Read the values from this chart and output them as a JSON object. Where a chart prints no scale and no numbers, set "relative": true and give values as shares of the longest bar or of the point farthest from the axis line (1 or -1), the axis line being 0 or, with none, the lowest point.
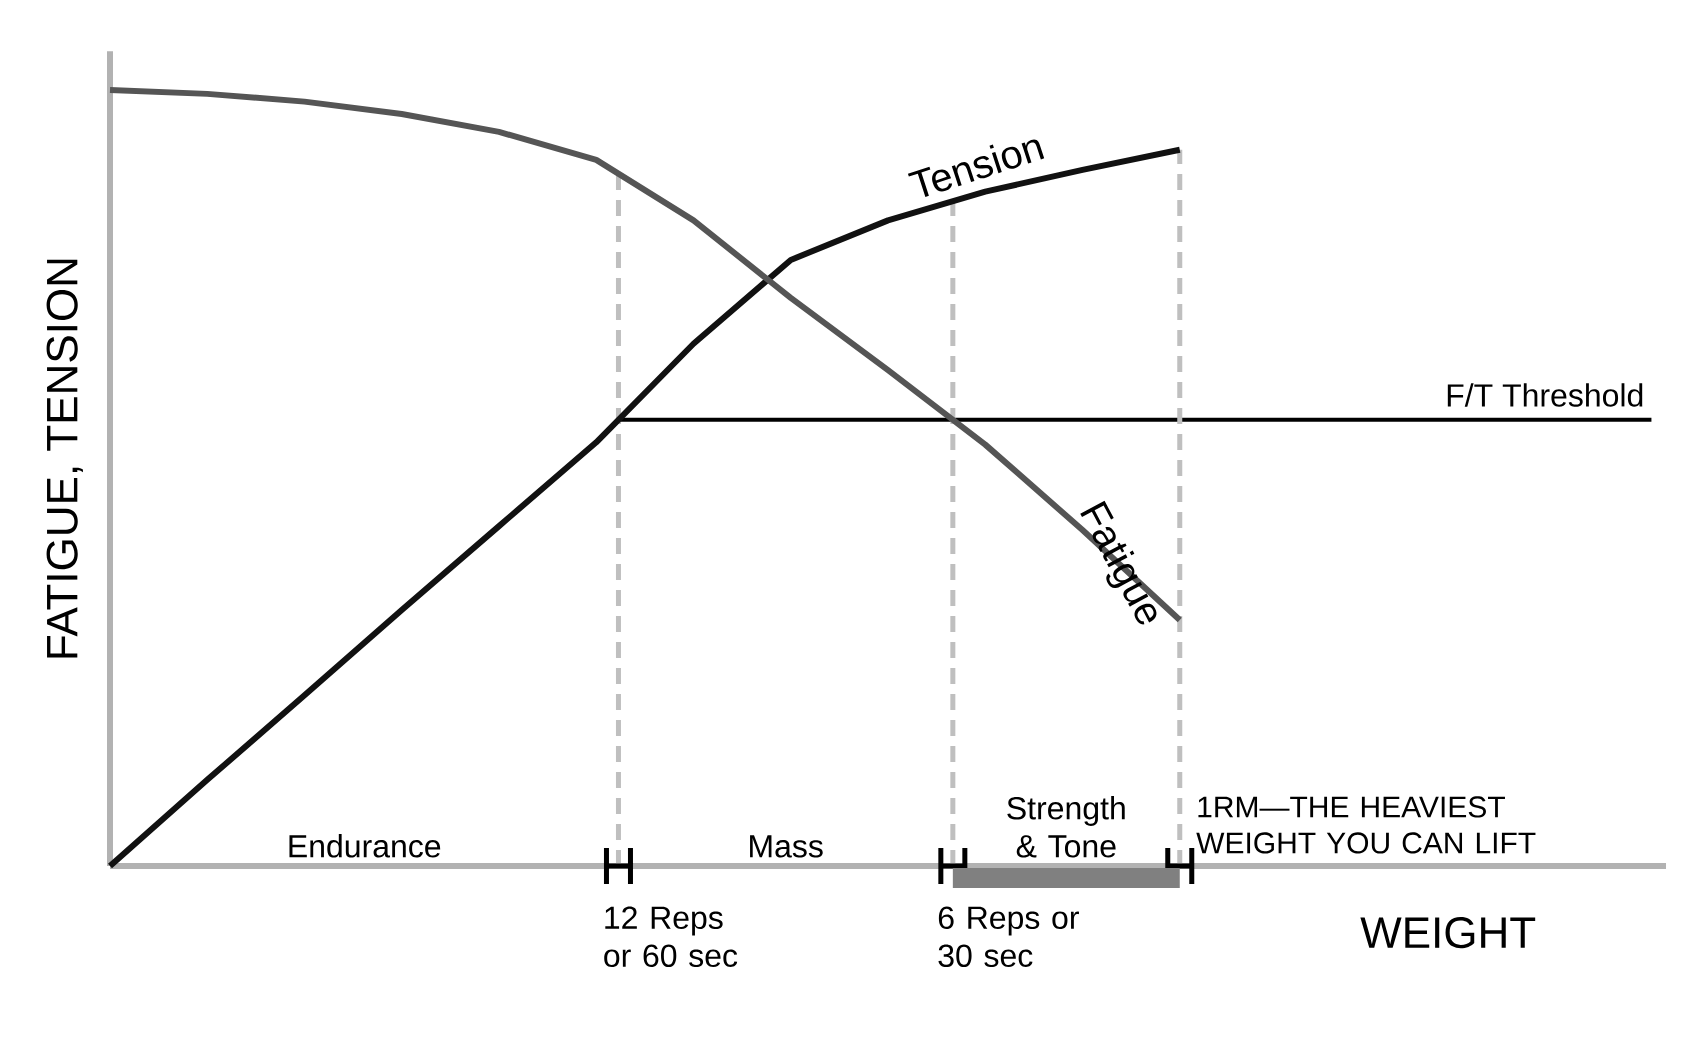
{
  "chart_data": {
    "type": "line",
    "relative": true,
    "xlabel": "WEIGHT",
    "ylabel": "FATIGUE, TENSION",
    "categories": [
      null,
      null,
      null,
      null,
      null,
      null,
      null,
      null,
      null,
      null,
      null,
      null,
      null,
      null,
      null,
      null,
      null
    ],
    "series": [
      {
        "name": "Tension",
        "color": "#111111",
        "values": [
          0,
          0.111,
          0.22,
          0.33,
          0.438,
          0.546,
          0.673,
          0.781,
          0.832,
          0.869,
          0.897,
          0.923,
          null,
          null,
          null,
          null,
          null
        ]
      },
      {
        "name": "Fatigue",
        "color": "#555555",
        "values": [
          1.0,
          0.995,
          0.985,
          0.969,
          0.946,
          0.91,
          0.832,
          0.732,
          0.639,
          0.543,
          0.433,
          0.317,
          null,
          null,
          null,
          null,
          null
        ]
      }
    ],
    "ref_lines": [
      {
        "axis": "y",
        "value": 0.575,
        "label": "F/T Threshold",
        "color": "#000000",
        "line_style": "solid"
      }
    ],
    "annotations": [
      "Endurance",
      "Mass",
      "Strength & Tone",
      "1RM—THE HEAVIEST WEIGHT YOU CAN LIFT",
      "12 Reps or 60 sec",
      "6 Reps or 30 sec"
    ],
    "line_style": "solid"
  }
}
